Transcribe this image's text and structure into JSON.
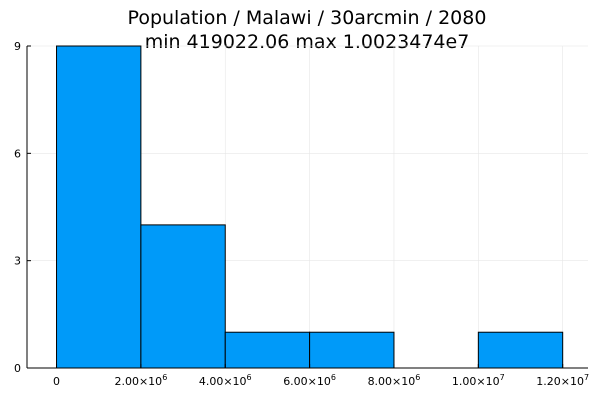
{
  "chart_data": {
    "type": "bar",
    "title": "Population / Malawi / 30arcmin / 2080",
    "subtitle": "min 419022.06  max 1.0023474e7",
    "xlabel": "",
    "ylabel": "",
    "bins": [
      {
        "x0": 0,
        "x1": 2000000,
        "count": 9
      },
      {
        "x0": 2000000,
        "x1": 4000000,
        "count": 4
      },
      {
        "x0": 4000000,
        "x1": 6000000,
        "count": 1
      },
      {
        "x0": 6000000,
        "x1": 8000000,
        "count": 1
      },
      {
        "x0": 8000000,
        "x1": 10000000,
        "count": 0
      },
      {
        "x0": 10000000,
        "x1": 12000000,
        "count": 1
      }
    ],
    "xlim": [
      -700000,
      12600000
    ],
    "ylim": [
      0,
      9
    ],
    "yticks": [
      0,
      3,
      6,
      9
    ],
    "ytick_labels": [
      "0",
      "3",
      "6",
      "9"
    ],
    "xticks": [
      0,
      2000000,
      4000000,
      6000000,
      8000000,
      10000000,
      12000000
    ],
    "xtick_labels": [
      {
        "mantissa": "0",
        "exp": ""
      },
      {
        "mantissa": "2.00×10",
        "exp": "6"
      },
      {
        "mantissa": "4.00×10",
        "exp": "6"
      },
      {
        "mantissa": "6.00×10",
        "exp": "6"
      },
      {
        "mantissa": "8.00×10",
        "exp": "6"
      },
      {
        "mantissa": "1.00×10",
        "exp": "7"
      },
      {
        "mantissa": "1.20×10",
        "exp": "7"
      }
    ],
    "grid": true,
    "colors": {
      "bar_fill": "#009af9",
      "bar_stroke": "#000000",
      "grid": "#e6e6e6",
      "axis": "#000000"
    }
  }
}
